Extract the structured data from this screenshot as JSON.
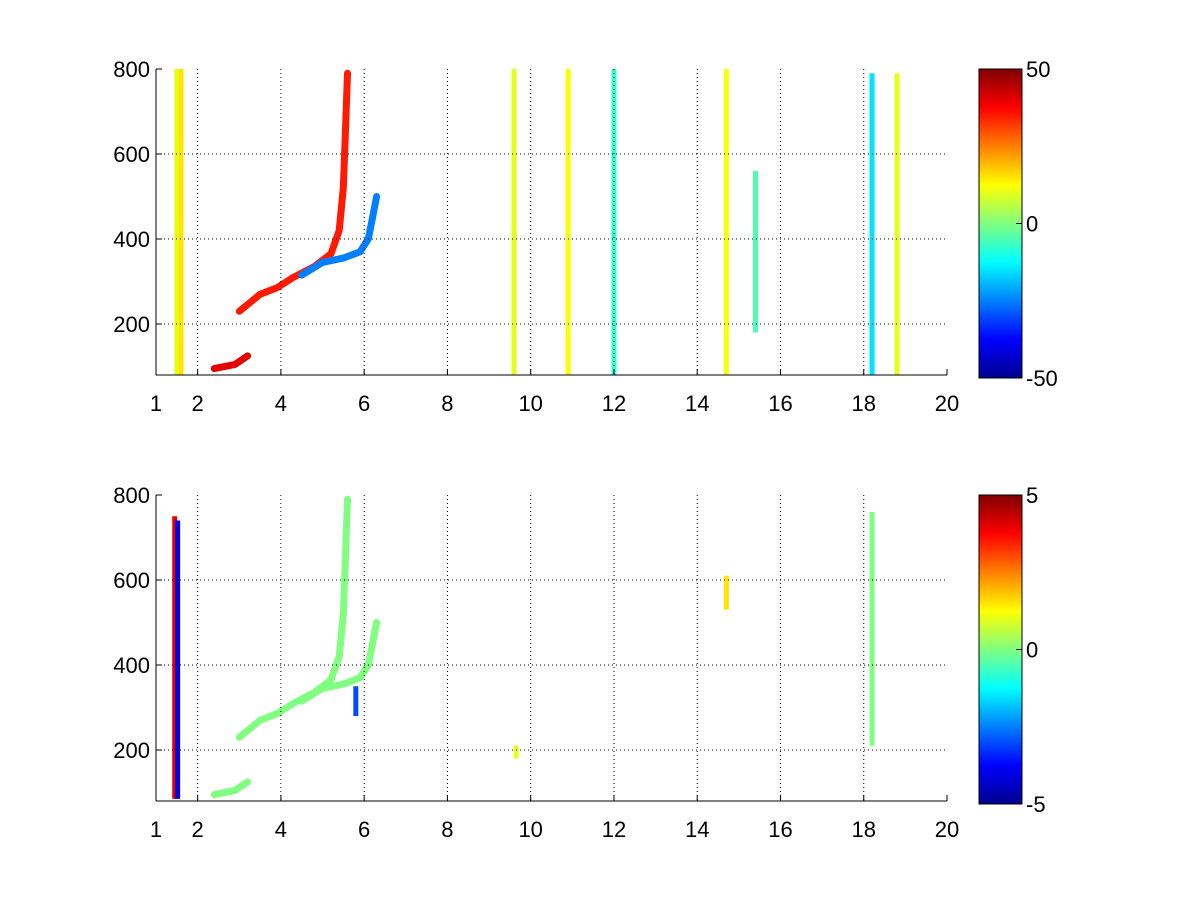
{
  "chart_data": [
    {
      "type": "heatmap",
      "title": "",
      "xlabel": "",
      "ylabel": "",
      "xlim": [
        1,
        20
      ],
      "ylim": [
        80,
        800
      ],
      "xticks": [
        1,
        2,
        4,
        6,
        8,
        10,
        12,
        14,
        16,
        18,
        20
      ],
      "xtick_labels": [
        "1",
        "2",
        "4",
        "6",
        "8",
        "10",
        "12",
        "14",
        "16",
        "18",
        "20"
      ],
      "yticks": [
        200,
        400,
        600,
        800
      ],
      "ytick_labels": [
        "200",
        "400",
        "600",
        "800"
      ],
      "grid": true,
      "colormap": "jet",
      "clim": [
        -50,
        50
      ],
      "colorbar_ticks": [
        -50,
        0,
        50
      ],
      "colorbar_tick_labels": [
        "-50",
        "0",
        "50"
      ],
      "background": "#ffffff",
      "features": [
        {
          "kind": "band",
          "x": 1.5,
          "y0": 80,
          "y1": 800,
          "value": 10
        },
        {
          "kind": "band",
          "x": 1.6,
          "y0": 80,
          "y1": 800,
          "value": 15
        },
        {
          "kind": "band",
          "x": 9.6,
          "y0": 80,
          "y1": 800,
          "value": 10
        },
        {
          "kind": "band",
          "x": 10.9,
          "y0": 80,
          "y1": 800,
          "value": 12
        },
        {
          "kind": "band",
          "x": 12.0,
          "y0": 80,
          "y1": 800,
          "value": -8
        },
        {
          "kind": "band",
          "x": 14.7,
          "y0": 80,
          "y1": 800,
          "value": 12
        },
        {
          "kind": "band",
          "x": 15.4,
          "y0": 180,
          "y1": 560,
          "value": -5
        },
        {
          "kind": "band",
          "x": 18.2,
          "y0": 80,
          "y1": 790,
          "value": -15
        },
        {
          "kind": "band",
          "x": 18.8,
          "y0": 80,
          "y1": 790,
          "value": 10
        },
        {
          "kind": "curve",
          "value": 40,
          "points": [
            [
              2.4,
              95
            ],
            [
              2.9,
              105
            ],
            [
              3.2,
              125
            ]
          ]
        },
        {
          "kind": "curve",
          "value": 35,
          "points": [
            [
              3.0,
              230
            ],
            [
              3.5,
              270
            ],
            [
              3.9,
              285
            ],
            [
              4.3,
              310
            ],
            [
              4.8,
              335
            ],
            [
              5.2,
              365
            ],
            [
              5.4,
              420
            ],
            [
              5.5,
              520
            ],
            [
              5.55,
              650
            ],
            [
              5.6,
              790
            ]
          ]
        },
        {
          "kind": "curve",
          "value": -25,
          "points": [
            [
              4.5,
              315
            ],
            [
              5.0,
              345
            ],
            [
              5.5,
              355
            ],
            [
              5.9,
              370
            ],
            [
              6.1,
              400
            ],
            [
              6.2,
              450
            ],
            [
              6.3,
              500
            ]
          ]
        }
      ]
    },
    {
      "type": "heatmap",
      "title": "",
      "xlabel": "",
      "ylabel": "",
      "xlim": [
        1,
        20
      ],
      "ylim": [
        80,
        800
      ],
      "xticks": [
        1,
        2,
        4,
        6,
        8,
        10,
        12,
        14,
        16,
        18,
        20
      ],
      "xtick_labels": [
        "1",
        "2",
        "4",
        "6",
        "8",
        "10",
        "12",
        "14",
        "16",
        "18",
        "20"
      ],
      "yticks": [
        200,
        400,
        600,
        800
      ],
      "ytick_labels": [
        "200",
        "400",
        "600",
        "800"
      ],
      "grid": true,
      "colormap": "jet",
      "clim": [
        -5,
        5
      ],
      "colorbar_ticks": [
        -5,
        0,
        5
      ],
      "colorbar_tick_labels": [
        "-5",
        "0",
        "5"
      ],
      "background": "#ffffff",
      "features": [
        {
          "kind": "band",
          "x": 1.45,
          "y0": 85,
          "y1": 750,
          "value": 4
        },
        {
          "kind": "band",
          "x": 1.52,
          "y0": 85,
          "y1": 740,
          "value": -4
        },
        {
          "kind": "band",
          "x": 9.65,
          "y0": 180,
          "y1": 210,
          "value": 1
        },
        {
          "kind": "band",
          "x": 14.7,
          "y0": 530,
          "y1": 610,
          "value": 1.5
        },
        {
          "kind": "band",
          "x": 18.2,
          "y0": 210,
          "y1": 760,
          "value": 0
        },
        {
          "kind": "band",
          "x": 5.8,
          "y0": 280,
          "y1": 350,
          "value": -3
        },
        {
          "kind": "curve",
          "value": 0,
          "points": [
            [
              2.4,
              95
            ],
            [
              2.9,
              105
            ],
            [
              3.2,
              125
            ]
          ]
        },
        {
          "kind": "curve",
          "value": 0,
          "points": [
            [
              3.0,
              230
            ],
            [
              3.5,
              270
            ],
            [
              3.9,
              285
            ],
            [
              4.3,
              310
            ],
            [
              4.8,
              335
            ],
            [
              5.2,
              365
            ],
            [
              5.4,
              420
            ],
            [
              5.5,
              520
            ],
            [
              5.55,
              650
            ],
            [
              5.6,
              790
            ]
          ]
        },
        {
          "kind": "curve",
          "value": 0,
          "points": [
            [
              4.5,
              315
            ],
            [
              5.0,
              345
            ],
            [
              5.5,
              355
            ],
            [
              5.9,
              370
            ],
            [
              6.1,
              400
            ],
            [
              6.2,
              450
            ],
            [
              6.3,
              500
            ]
          ]
        }
      ]
    }
  ]
}
